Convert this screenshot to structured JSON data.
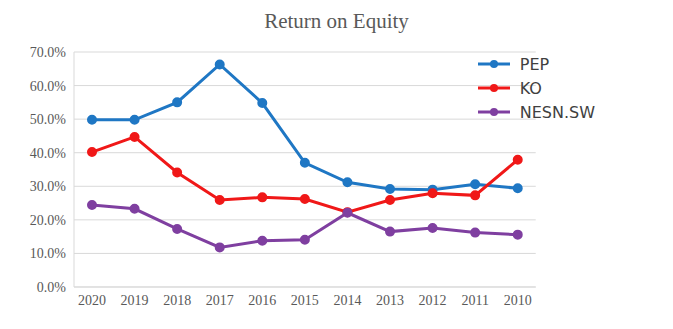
{
  "chart_data": {
    "type": "line",
    "title": "Return on Equity",
    "categories": [
      "2020",
      "2019",
      "2018",
      "2017",
      "2016",
      "2015",
      "2014",
      "2013",
      "2012",
      "2011",
      "2010"
    ],
    "series": [
      {
        "name": "PEP",
        "color": "#1F77C4",
        "values": [
          49.8,
          49.8,
          55.0,
          66.3,
          54.8,
          37.0,
          31.2,
          29.2,
          29.0,
          30.6,
          29.4
        ]
      },
      {
        "name": "KO",
        "color": "#F01818",
        "values": [
          40.2,
          44.7,
          34.1,
          25.9,
          26.7,
          26.2,
          22.3,
          25.9,
          27.9,
          27.3,
          37.9
        ]
      },
      {
        "name": "NESN.SW",
        "color": "#7F3FA0",
        "values": [
          24.4,
          23.3,
          17.3,
          11.8,
          13.8,
          14.1,
          22.1,
          16.5,
          17.6,
          16.2,
          15.6
        ]
      }
    ],
    "ylim": [
      0,
      70
    ],
    "yticks": [
      {
        "value": 0,
        "label": "0.0%"
      },
      {
        "value": 10,
        "label": "10.0%"
      },
      {
        "value": 20,
        "label": "20.0%"
      },
      {
        "value": 30,
        "label": "30.0%"
      },
      {
        "value": 40,
        "label": "40.0%"
      },
      {
        "value": 50,
        "label": "50.0%"
      },
      {
        "value": 60,
        "label": "60.0%"
      },
      {
        "value": 70,
        "label": "70.0%"
      }
    ],
    "grid": true,
    "legend": "top-right",
    "marker": "circle"
  }
}
